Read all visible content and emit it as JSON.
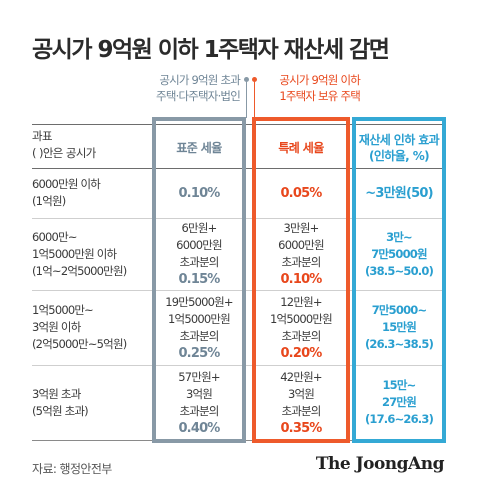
{
  "title": "공시가 9억원 이하 1주택자 재산세 감면",
  "header_general": [
    "공시가 9억원 초과",
    "주택·다주택자·법인"
  ],
  "header_special": [
    "공시가 9억원 이하",
    "1주택자 보유 주택"
  ],
  "colors": {
    "general": "#8899a6",
    "special": "#ee5a2b",
    "effect": "#34a9d5"
  },
  "chart_data": {
    "type": "table",
    "row_header": [
      "과표",
      "( )안은 공시가"
    ],
    "columns": [
      "표준 세율",
      "특례 세율",
      "재산세 인하 효과 (인하율, %)"
    ],
    "columns_lines": [
      [
        "표준 세율"
      ],
      [
        "특례 세율"
      ],
      [
        "재산세 인하 효과",
        "(인하율, %)"
      ]
    ],
    "rows": [
      {
        "label": [
          "6000만원 이하",
          "(1억원)"
        ],
        "standard": [
          "0.10%"
        ],
        "special": [
          "0.05%"
        ],
        "effect": [
          "~3만원(50)"
        ]
      },
      {
        "label": [
          "6000만~",
          "1억5000만원 이하",
          "(1억~2억5000만원)"
        ],
        "standard": [
          "6만원+",
          "6000만원",
          "초과분의",
          "0.15%"
        ],
        "special": [
          "3만원+",
          "6000만원",
          "초과분의",
          "0.10%"
        ],
        "effect": [
          "3만~",
          "7만5000원",
          "(38.5~50.0)"
        ]
      },
      {
        "label": [
          "1억5000만~",
          "3억원 이하",
          "(2억5000만~5억원)"
        ],
        "standard": [
          "19만5000원+",
          "1억5000만원",
          "초과분의",
          "0.25%"
        ],
        "special": [
          "12만원+",
          "1억5000만원",
          "초과분의",
          "0.20%"
        ],
        "effect": [
          "7만5000~",
          "15만원",
          "(26.3~38.5)"
        ]
      },
      {
        "label": [
          "3억원 초과",
          "(5억원 초과)"
        ],
        "standard": [
          "57만원+",
          "3억원",
          "초과분의",
          "0.40%"
        ],
        "special": [
          "42만원+",
          "3억원",
          "초과분의",
          "0.35%"
        ],
        "effect": [
          "15만~",
          "27만원",
          "(17.6~26.3)"
        ]
      }
    ]
  },
  "source": "자료: 행정안전부",
  "logo": "The JoongAng"
}
